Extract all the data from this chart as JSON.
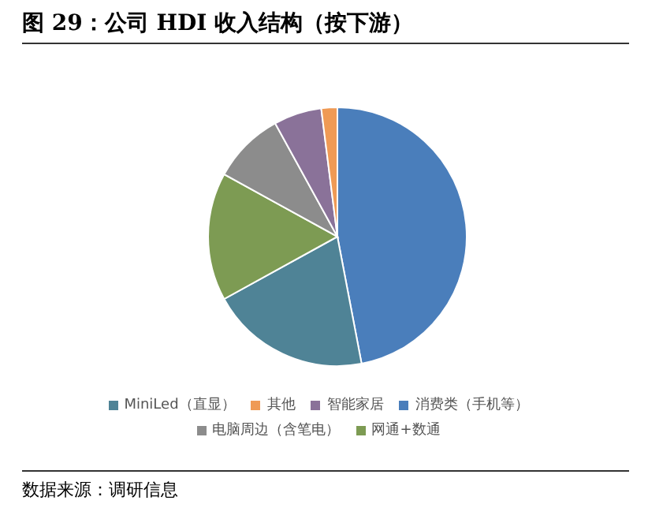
{
  "chart_data": {
    "type": "pie",
    "title": "图 29：公司 HDI 收入结构（按下游）",
    "categories": [
      "消费类（手机等）",
      "MiniLed（直显）",
      "网通+数通",
      "电脑周边（含笔电）",
      "智能家居",
      "其他"
    ],
    "values": [
      47,
      20,
      16,
      9,
      6,
      2
    ],
    "colors": [
      "#4a7ebb",
      "#4f8396",
      "#7d9b53",
      "#8c8c8c",
      "#8a7299",
      "#ef9a55"
    ],
    "legend": "bottom",
    "annotations": [
      "数据来源：调研信息"
    ]
  }
}
